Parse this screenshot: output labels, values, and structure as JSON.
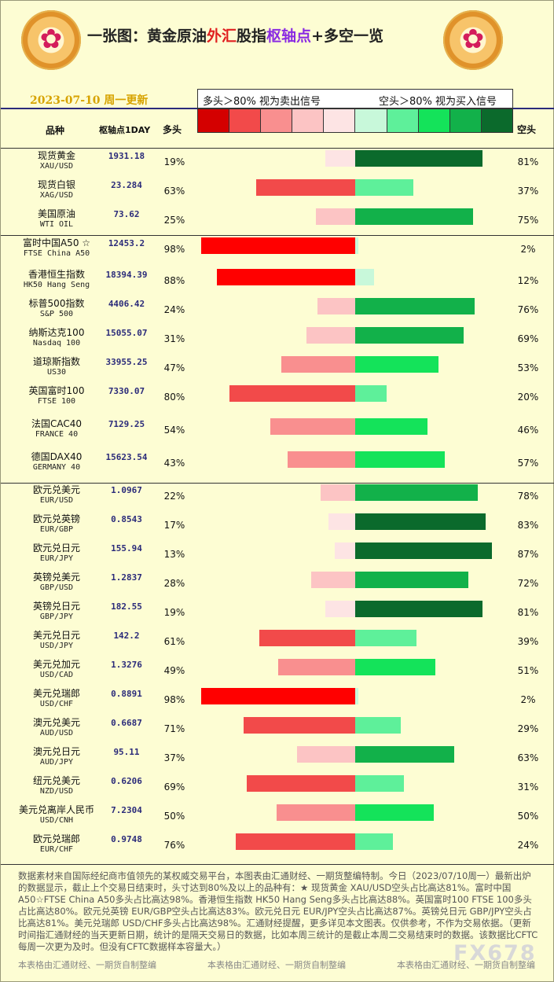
{
  "header": {
    "title_part1": "一张图：黄金原油",
    "title_part2": "外汇",
    "title_part3": "股指",
    "title_part4": "枢轴点",
    "title_part5": "+多空一览",
    "date": "2023-07-10 周一更新",
    "col_name": "品种",
    "col_pivot": "枢轴点1DAY",
    "col_long": "多头",
    "col_short": "空头",
    "legend_left": "多头＞80% 视为卖出信号",
    "legend_right": "空头＞80% 视为买入信号"
  },
  "colors": {
    "scale": [
      "#d40000",
      "#f24a4a",
      "#f98f8f",
      "#fcc4c4",
      "#fde4e4",
      "#c8f8da",
      "#5ef09a",
      "#14e35a",
      "#12b14a",
      "#0b6a2c"
    ],
    "long_scale": [
      "#fde4e4",
      "#fcc4c4",
      "#f98f8f",
      "#f24a4a",
      "#ff0000"
    ],
    "short_scale": [
      "#c8f8da",
      "#5ef09a",
      "#14e35a",
      "#12b14a",
      "#0b6a2c"
    ]
  },
  "rows": [
    {
      "name": "现货黄金",
      "sym": "XAU/USD",
      "pivot": "1931.18",
      "long": 19,
      "short": 81
    },
    {
      "name": "现货白银",
      "sym": "XAG/USD",
      "pivot": "23.284",
      "long": 63,
      "short": 37
    },
    {
      "name": "美国原油",
      "sym": "WTI OIL",
      "pivot": "73.62",
      "long": 25,
      "short": 75
    },
    {
      "name": "富时中国A50 ☆",
      "sym": "FTSE China A50",
      "pivot": "12453.2",
      "long": 98,
      "short": 2
    },
    {
      "name": "香港恒生指数",
      "sym": "HK50 Hang Seng",
      "pivot": "18394.39",
      "long": 88,
      "short": 12
    },
    {
      "name": "标普500指数",
      "sym": "S&P 500",
      "pivot": "4406.42",
      "long": 24,
      "short": 76
    },
    {
      "name": "纳斯达克100",
      "sym": "Nasdaq 100",
      "pivot": "15055.07",
      "long": 31,
      "short": 69
    },
    {
      "name": "道琼斯指数",
      "sym": "US30",
      "pivot": "33955.25",
      "long": 47,
      "short": 53
    },
    {
      "name": "英国富时100",
      "sym": "FTSE 100",
      "pivot": "7330.07",
      "long": 80,
      "short": 20
    },
    {
      "name": "法国CAC40",
      "sym": "FRANCE 40",
      "pivot": "7129.25",
      "long": 54,
      "short": 46
    },
    {
      "name": "德国DAX40",
      "sym": "GERMANY 40",
      "pivot": "15623.54",
      "long": 43,
      "short": 57
    },
    {
      "name": "欧元兑美元",
      "sym": "EUR/USD",
      "pivot": "1.0967",
      "long": 22,
      "short": 78
    },
    {
      "name": "欧元兑英镑",
      "sym": "EUR/GBP",
      "pivot": "0.8543",
      "long": 17,
      "short": 83
    },
    {
      "name": "欧元兑日元",
      "sym": "EUR/JPY",
      "pivot": "155.94",
      "long": 13,
      "short": 87
    },
    {
      "name": "英镑兑美元",
      "sym": "GBP/USD",
      "pivot": "1.2837",
      "long": 28,
      "short": 72
    },
    {
      "name": "英镑兑日元",
      "sym": "GBP/JPY",
      "pivot": "182.55",
      "long": 19,
      "short": 81
    },
    {
      "name": "美元兑日元",
      "sym": "USD/JPY",
      "pivot": "142.2",
      "long": 61,
      "short": 39
    },
    {
      "name": "美元兑加元",
      "sym": "USD/CAD",
      "pivot": "1.3276",
      "long": 49,
      "short": 51
    },
    {
      "name": "美元兑瑞郎",
      "sym": "USD/CHF",
      "pivot": "0.8891",
      "long": 98,
      "short": 2
    },
    {
      "name": "澳元兑美元",
      "sym": "AUD/USD",
      "pivot": "0.6687",
      "long": 71,
      "short": 29
    },
    {
      "name": "澳元兑日元",
      "sym": "AUD/JPY",
      "pivot": "95.11",
      "long": 37,
      "short": 63
    },
    {
      "name": "纽元兑美元",
      "sym": "NZD/USD",
      "pivot": "0.6206",
      "long": 69,
      "short": 31
    },
    {
      "name": "美元兑离岸人民币",
      "sym": "USD/CNH",
      "pivot": "7.2304",
      "long": 50,
      "short": 50
    },
    {
      "name": "欧元兑瑞郎",
      "sym": "EUR/CHF",
      "pivot": "0.9748",
      "long": 76,
      "short": 24
    }
  ],
  "note": "数据素材来自国际经纪商市值领先的某权威交易平台，本图表由汇通财经、一期货整编特制。今日（2023/07/10周一）最新出炉的数据显示，截止上个交易日结束时，头寸达到80%及以上的品种有：★ 现货黄金 XAU/USD空头占比高达81%。富时中国A50☆FTSE China A50多头占比高达98%。香港恒生指数 HK50 Hang Seng多头占比高达88%。英国富时100 FTSE 100多头占比高达80%。欧元兑英镑 EUR/GBP空头占比高达83%。欧元兑日元 EUR/JPY空头占比高达87%。英镑兑日元 GBP/JPY空头占比高达81%。美元兑瑞郎 USD/CHF多头占比高达98%。汇通财经提醒，更多详见本文图表。仅供参考，不作为交易依据。（更新时间指汇通财经的当天更新日期，统计的是隔天交易日的数据，比如本周三统计的是截止本周二交易结束时的数据。该数据比CFTC每周一次更为及时。但没有CFTC数据样本容量大。）",
  "footer": {
    "left": "本表格由汇通财经、一期货自制整编",
    "mid": "本表格由汇通财经、一期货自制整编",
    "right": "本表格由汇通财经、一期货自制整编"
  },
  "watermark": "FX678"
}
